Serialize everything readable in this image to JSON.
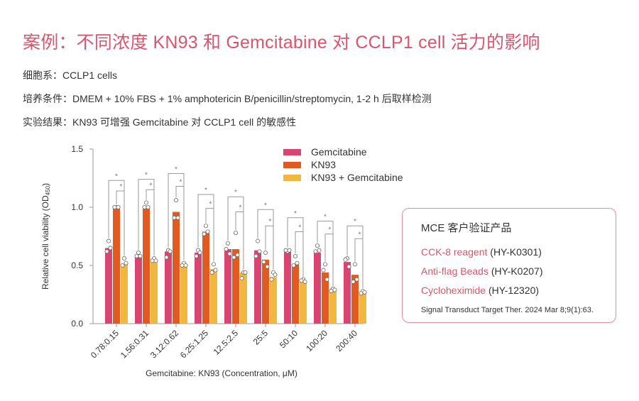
{
  "header": {
    "title": "案例：不同浓度 KN93 和 Gemcitabine 对 CCLP1 cell 活力的影响",
    "cell_line": "细胞系：CCLP1 cells",
    "culture": "培养条件：DMEM + 10% FBS + 1% amphotericin B/penicillin/streptomycin, 1-2 h 后取样检测",
    "result": "实验结果：KN93 可增强 Gemcitabine 对 CCLP1 cell 的敏感性"
  },
  "colors": {
    "accent": "#d9556d",
    "gemcitabine": "#d94570",
    "kn93": "#e05a22",
    "combo": "#f0b83e",
    "axis": "#999999"
  },
  "chart_data": {
    "type": "bar",
    "title": "",
    "xlabel": "Gemcitabine: KN93 (Concentration, μM)",
    "ylabel": "Relative cell viability (OD450)",
    "ylabel_main": "Relative cell viability (OD",
    "ylabel_sub": "450",
    "ylabel_end": ")",
    "ylim": [
      0,
      1.5
    ],
    "yticks": [
      "0.0",
      "0.5",
      "1.0",
      "1.5"
    ],
    "ytick_values": [
      0,
      0.5,
      1.0,
      1.5
    ],
    "legend_position": "top-right",
    "categories": [
      "0.78:0.15",
      "1.56:0.31",
      "3.12:0.62",
      "6.25:1.25",
      "12.5:2.5",
      "25:5",
      "50:10",
      "100:20",
      "200:40"
    ],
    "series": [
      {
        "name": "Gemcitabine",
        "values": [
          0.65,
          0.59,
          0.62,
          0.61,
          0.64,
          0.63,
          0.62,
          0.61,
          0.53
        ],
        "points": [
          [
            0.71,
            0.62,
            0.65
          ],
          [
            0.61,
            0.58,
            0.58
          ],
          [
            0.63,
            0.57,
            0.62
          ],
          [
            0.63,
            0.58,
            0.61
          ],
          [
            0.69,
            0.64,
            0.6
          ],
          [
            0.71,
            0.58,
            0.62
          ],
          [
            0.62,
            0.63,
            0.63
          ],
          [
            0.67,
            0.62,
            0.63
          ],
          [
            0.56,
            0.55,
            0.49
          ]
        ]
      },
      {
        "name": "KN93",
        "values": [
          1.0,
          1.0,
          0.96,
          0.79,
          0.64,
          0.55,
          0.51,
          0.44,
          0.42
        ],
        "points": [
          [
            1.0,
            1.0,
            1.0
          ],
          [
            1.04,
            1.0,
            1.0
          ],
          [
            1.06,
            0.91,
            0.91
          ],
          [
            0.84,
            0.77,
            0.79
          ],
          [
            0.78,
            0.57,
            0.59
          ],
          [
            0.61,
            0.53,
            0.49
          ],
          [
            0.58,
            0.5,
            0.52
          ],
          [
            0.51,
            0.46,
            0.38
          ],
          [
            0.51,
            0.36,
            0.38
          ]
        ]
      },
      {
        "name": "KN93 + Gemcitabine",
        "values": [
          0.51,
          0.54,
          0.5,
          0.47,
          0.44,
          0.4,
          0.37,
          0.3,
          0.27
        ],
        "points": [
          [
            0.56,
            0.5,
            0.52
          ],
          [
            0.56,
            0.54,
            0.54
          ],
          [
            0.52,
            0.5,
            0.5
          ],
          [
            0.51,
            0.44,
            0.46
          ],
          [
            0.44,
            0.39,
            0.44
          ],
          [
            0.44,
            0.38,
            0.42
          ],
          [
            0.38,
            0.37,
            0.36
          ],
          [
            0.3,
            0.28,
            0.29
          ],
          [
            0.28,
            0.26,
            0.27
          ]
        ]
      }
    ],
    "significance": [
      {
        "comparison": "Gemcitabine vs KN93 + Gemcitabine",
        "label": "*",
        "bracket_top": [
          1.23,
          1.24,
          1.29,
          1.11,
          1.09,
          0.98,
          0.91,
          0.88,
          0.84
        ]
      },
      {
        "comparison": "KN93 vs KN93 + Gemcitabine",
        "label": "*",
        "bracket_top": [
          1.14,
          1.15,
          1.18,
          0.99,
          0.96,
          0.84,
          0.79,
          0.77,
          0.73
        ]
      }
    ]
  },
  "card": {
    "title": "MCE 客户验证产品",
    "items": [
      {
        "product": "CCK-8 reagent",
        "catalog": "(HY-K0301)"
      },
      {
        "product": "Anti-flag Beads",
        "catalog": "(HY-K0207)"
      },
      {
        "product": "Cycloheximide",
        "catalog": "(HY-12320)"
      }
    ],
    "reference": "Signal Transduct Target Ther. 2024 Mar 8;9(1):63."
  }
}
